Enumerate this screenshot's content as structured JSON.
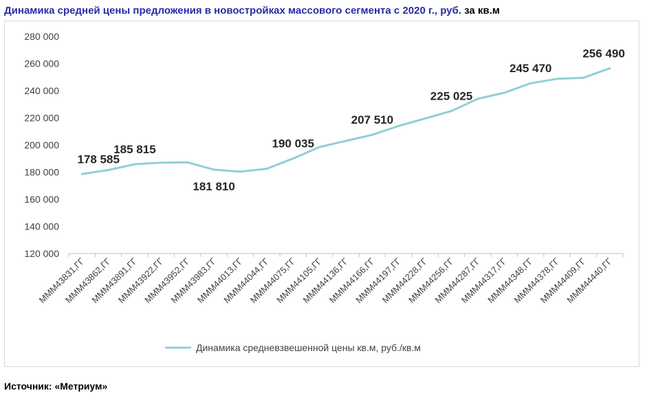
{
  "header": {
    "title_main": "Динамика средней цены предложения в новостройках массового сегмента с 2020 г., руб.",
    "title_tail": "за кв.м"
  },
  "footer": {
    "source": "Источник: «Метриум»"
  },
  "chart_data": {
    "type": "line",
    "title": "Динамика средней цены предложения в новостройках массового сегмента с 2020 г., руб. за кв.м",
    "categories": [
      "МММ43831,ГГ",
      "МММ43862,ГГ",
      "МММ43891,ГГ",
      "МММ43922,ГГ",
      "МММ43952,ГГ",
      "МММ43983,ГГ",
      "МММ44013,ГГ",
      "МММ44044,ГГ",
      "МММ44075,ГГ",
      "МММ44105,ГГ",
      "МММ44136,ГГ",
      "МММ44166,ГГ",
      "МММ44197,ГГ",
      "МММ44228,ГГ",
      "МММ44256,ГГ",
      "МММ44287,ГГ",
      "МММ44317,ГГ",
      "МММ44348,ГГ",
      "МММ44378,ГГ",
      "МММ44409,ГГ",
      "МММ44440,ГГ"
    ],
    "series": [
      {
        "name": "Динамика средневзвешенной цены кв.м, руб./кв.м",
        "color": "#8fcfd6",
        "values": [
          178585,
          181500,
          185815,
          187000,
          187200,
          181810,
          180300,
          182500,
          190035,
          198500,
          203000,
          207510,
          214000,
          219500,
          225025,
          234000,
          238500,
          245470,
          248700,
          249500,
          256490
        ]
      }
    ],
    "data_labels": [
      {
        "index": 0,
        "text": "178 585"
      },
      {
        "index": 2,
        "text": "185 815"
      },
      {
        "index": 5,
        "text": "181 810"
      },
      {
        "index": 8,
        "text": "190 035"
      },
      {
        "index": 11,
        "text": "207 510"
      },
      {
        "index": 14,
        "text": "225 025"
      },
      {
        "index": 17,
        "text": "245 470"
      },
      {
        "index": 20,
        "text": "256 490"
      }
    ],
    "yticks": [
      "120 000",
      "140 000",
      "160 000",
      "180 000",
      "200 000",
      "220 000",
      "240 000",
      "260 000",
      "280 000"
    ],
    "ylim": [
      120000,
      280000
    ],
    "grid": false,
    "legend": "bottom"
  }
}
